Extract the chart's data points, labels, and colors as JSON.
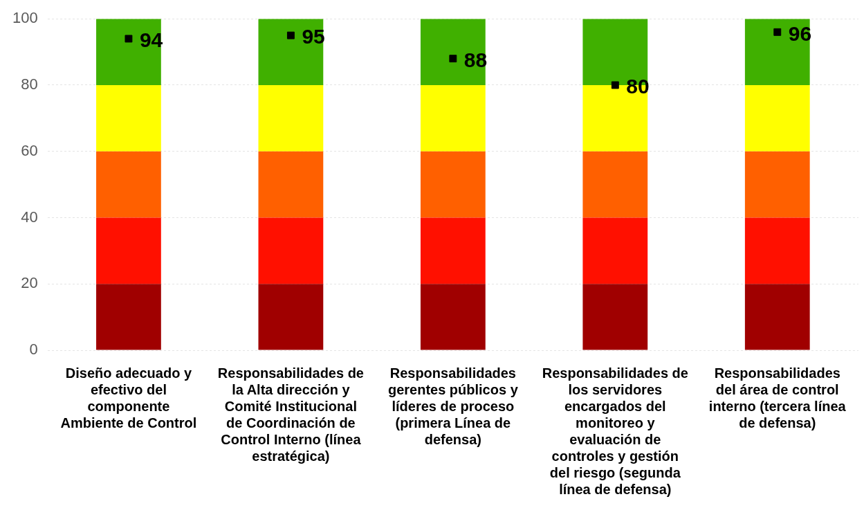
{
  "chart_data": {
    "type": "bar",
    "stacked": true,
    "categories": [
      "Diseño adecuado y efectivo del componente Ambiente de Control",
      "Responsabilidades de la Alta dirección y Comité Institucional de Coordinación de Control Interno (línea estratégica)",
      "Responsabilidades gerentes públicos y líderes de proceso (primera Línea de defensa)",
      "Responsabilidades de los servidores encargados del monitoreo y evaluación de controles y gestión del riesgo (segunda línea de defensa)",
      "Responsabilidades del área de control interno (tercera línea de defensa)"
    ],
    "series": [
      {
        "color": "#a00000",
        "values": [
          20,
          20,
          20,
          20,
          20
        ]
      },
      {
        "color": "#ff1000",
        "values": [
          20,
          20,
          20,
          20,
          20
        ]
      },
      {
        "color": "#ff6000",
        "values": [
          20,
          20,
          20,
          20,
          20
        ]
      },
      {
        "color": "#ffff00",
        "values": [
          20,
          20,
          20,
          20,
          20
        ]
      },
      {
        "color": "#40b000",
        "values": [
          20,
          20,
          20,
          20,
          20
        ]
      },
      {
        "type": "scatter",
        "color": "#000000",
        "marker": "square",
        "data_labels": true,
        "values": [
          94,
          95,
          88,
          80,
          96
        ]
      }
    ],
    "ylim": [
      0,
      100
    ],
    "yticks": [
      0,
      20,
      40,
      60,
      80,
      100
    ],
    "grid": "y",
    "legend": false
  }
}
